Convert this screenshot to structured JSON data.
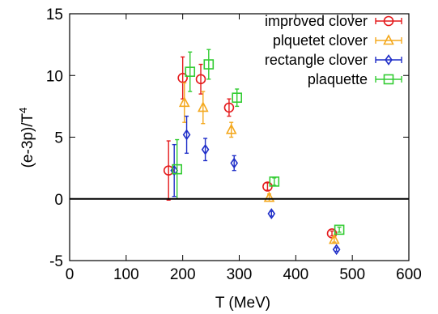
{
  "chart_data": {
    "type": "scatter",
    "title": "",
    "xlabel": "T (MeV)",
    "ylabel_main": "(e-3p)/T",
    "ylabel_sup": "4",
    "xlim": [
      0,
      600
    ],
    "ylim": [
      -5,
      15
    ],
    "xticks": [
      "0",
      "100",
      "200",
      "300",
      "400",
      "500",
      "600"
    ],
    "yticks": [
      "-5",
      "0",
      "5",
      "10",
      "15"
    ],
    "grid": false,
    "legend_position": "top-right",
    "reference_line_y": 0,
    "series": [
      {
        "name": "improved clover",
        "color": "#e41a1c",
        "marker": "circle",
        "points": [
          {
            "x": 175,
            "y": 2.3,
            "yerr": 2.4,
            "xerr": 0
          },
          {
            "x": 200,
            "y": 9.8,
            "yerr": 1.7,
            "xerr": 0
          },
          {
            "x": 232,
            "y": 9.7,
            "yerr": 1.2,
            "xerr": 0
          },
          {
            "x": 282,
            "y": 7.4,
            "yerr": 0.7,
            "xerr": 0
          },
          {
            "x": 350,
            "y": 1.0,
            "yerr": 0.3,
            "xerr": 0
          },
          {
            "x": 464,
            "y": -2.8,
            "yerr": 0.2,
            "xerr": 0
          }
        ]
      },
      {
        "name": "plquetet clover",
        "color": "#f4a81d",
        "marker": "triangle",
        "points": [
          {
            "x": 203,
            "y": 7.8,
            "yerr": 1.6,
            "xerr": 0
          },
          {
            "x": 236,
            "y": 7.4,
            "yerr": 1.3,
            "xerr": 0
          },
          {
            "x": 286,
            "y": 5.6,
            "yerr": 0.6,
            "xerr": 0
          },
          {
            "x": 353,
            "y": 0.1,
            "yerr": 0.3,
            "xerr": 0
          },
          {
            "x": 468,
            "y": -3.3,
            "yerr": 0.2,
            "xerr": 0
          }
        ]
      },
      {
        "name": "rectangle clover",
        "color": "#1f2ec8",
        "marker": "diamond",
        "points": [
          {
            "x": 185,
            "y": 2.3,
            "yerr": 2.1,
            "xerr": 0
          },
          {
            "x": 207,
            "y": 5.2,
            "yerr": 1.5,
            "xerr": 0
          },
          {
            "x": 240,
            "y": 4.0,
            "yerr": 0.9,
            "xerr": 0
          },
          {
            "x": 291,
            "y": 2.9,
            "yerr": 0.6,
            "xerr": 0
          },
          {
            "x": 357,
            "y": -1.2,
            "yerr": 0.2,
            "xerr": 0
          },
          {
            "x": 472,
            "y": -4.1,
            "yerr": 0.15,
            "xerr": 0
          }
        ]
      },
      {
        "name": "plaquette",
        "color": "#33cc33",
        "marker": "square",
        "points": [
          {
            "x": 190,
            "y": 2.4,
            "yerr": 2.4,
            "xerr": 0
          },
          {
            "x": 213,
            "y": 10.3,
            "yerr": 1.6,
            "xerr": 0
          },
          {
            "x": 246,
            "y": 10.9,
            "yerr": 1.2,
            "xerr": 0
          },
          {
            "x": 296,
            "y": 8.2,
            "yerr": 0.7,
            "xerr": 0
          },
          {
            "x": 362,
            "y": 1.4,
            "yerr": 0.3,
            "xerr": 0
          },
          {
            "x": 477,
            "y": -2.5,
            "yerr": 0.2,
            "xerr": 0
          }
        ]
      }
    ]
  }
}
